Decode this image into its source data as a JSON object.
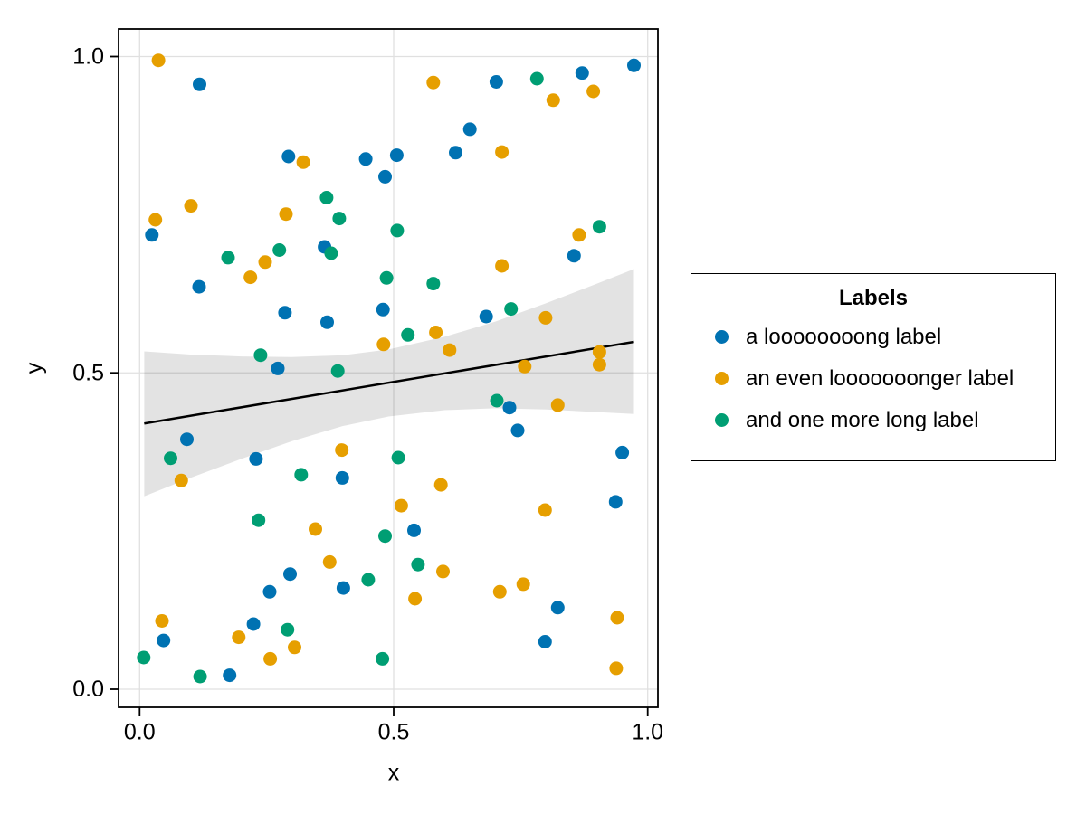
{
  "chart_data": {
    "type": "scatter",
    "title": "",
    "xlabel": "x",
    "ylabel": "y",
    "xlim": [
      -0.041,
      1.02
    ],
    "ylim": [
      -0.029,
      1.044
    ],
    "grid": true,
    "grid_color": "#e0e0e0",
    "x_ticks": {
      "values": [
        0.0,
        0.5,
        1.0
      ],
      "labels": [
        "0.0",
        "0.5",
        "1.0"
      ]
    },
    "y_ticks": {
      "values": [
        0.0,
        0.5,
        1.0
      ],
      "labels": [
        "0.0",
        "0.5",
        "1.0"
      ]
    },
    "legend": {
      "title": "Labels",
      "position": "right-outside"
    },
    "series": [
      {
        "name": "a loooooooong label",
        "color": "#0072B2",
        "points": [
          [
            0.118,
            0.956
          ],
          [
            0.973,
            0.986
          ],
          [
            0.871,
            0.974
          ],
          [
            0.702,
            0.96
          ],
          [
            0.65,
            0.885
          ],
          [
            0.622,
            0.848
          ],
          [
            0.506,
            0.844
          ],
          [
            0.445,
            0.838
          ],
          [
            0.483,
            0.81
          ],
          [
            0.293,
            0.842
          ],
          [
            0.024,
            0.718
          ],
          [
            0.855,
            0.685
          ],
          [
            0.364,
            0.699
          ],
          [
            0.117,
            0.636
          ],
          [
            0.286,
            0.595
          ],
          [
            0.479,
            0.6
          ],
          [
            0.369,
            0.58
          ],
          [
            0.682,
            0.589
          ],
          [
            0.272,
            0.507
          ],
          [
            0.728,
            0.445
          ],
          [
            0.744,
            0.409
          ],
          [
            0.95,
            0.374
          ],
          [
            0.093,
            0.395
          ],
          [
            0.229,
            0.364
          ],
          [
            0.399,
            0.334
          ],
          [
            0.937,
            0.296
          ],
          [
            0.54,
            0.251
          ],
          [
            0.296,
            0.182
          ],
          [
            0.256,
            0.154
          ],
          [
            0.401,
            0.16
          ],
          [
            0.823,
            0.129
          ],
          [
            0.798,
            0.075
          ],
          [
            0.047,
            0.077
          ],
          [
            0.224,
            0.103
          ],
          [
            0.177,
            0.022
          ]
        ]
      },
      {
        "name": "an even looooooonger label",
        "color": "#E69F00",
        "points": [
          [
            0.037,
            0.994
          ],
          [
            0.578,
            0.959
          ],
          [
            0.893,
            0.945
          ],
          [
            0.814,
            0.931
          ],
          [
            0.713,
            0.849
          ],
          [
            0.322,
            0.833
          ],
          [
            0.101,
            0.764
          ],
          [
            0.031,
            0.742
          ],
          [
            0.288,
            0.751
          ],
          [
            0.865,
            0.718
          ],
          [
            0.713,
            0.669
          ],
          [
            0.247,
            0.675
          ],
          [
            0.218,
            0.651
          ],
          [
            0.48,
            0.545
          ],
          [
            0.583,
            0.564
          ],
          [
            0.61,
            0.536
          ],
          [
            0.799,
            0.587
          ],
          [
            0.905,
            0.533
          ],
          [
            0.905,
            0.513
          ],
          [
            0.758,
            0.51
          ],
          [
            0.823,
            0.449
          ],
          [
            0.398,
            0.378
          ],
          [
            0.082,
            0.33
          ],
          [
            0.593,
            0.323
          ],
          [
            0.515,
            0.29
          ],
          [
            0.798,
            0.283
          ],
          [
            0.346,
            0.253
          ],
          [
            0.374,
            0.201
          ],
          [
            0.597,
            0.186
          ],
          [
            0.755,
            0.166
          ],
          [
            0.709,
            0.154
          ],
          [
            0.542,
            0.143
          ],
          [
            0.044,
            0.108
          ],
          [
            0.195,
            0.082
          ],
          [
            0.305,
            0.066
          ],
          [
            0.257,
            0.048
          ],
          [
            0.94,
            0.113
          ],
          [
            0.938,
            0.033
          ]
        ]
      },
      {
        "name": "and one more long label",
        "color": "#009E73",
        "points": [
          [
            0.782,
            0.965
          ],
          [
            0.368,
            0.777
          ],
          [
            0.393,
            0.744
          ],
          [
            0.507,
            0.725
          ],
          [
            0.905,
            0.731
          ],
          [
            0.377,
            0.689
          ],
          [
            0.275,
            0.694
          ],
          [
            0.174,
            0.682
          ],
          [
            0.486,
            0.65
          ],
          [
            0.578,
            0.641
          ],
          [
            0.731,
            0.601
          ],
          [
            0.528,
            0.56
          ],
          [
            0.238,
            0.528
          ],
          [
            0.39,
            0.503
          ],
          [
            0.703,
            0.456
          ],
          [
            0.061,
            0.365
          ],
          [
            0.318,
            0.339
          ],
          [
            0.509,
            0.366
          ],
          [
            0.234,
            0.267
          ],
          [
            0.483,
            0.242
          ],
          [
            0.45,
            0.173
          ],
          [
            0.548,
            0.197
          ],
          [
            0.291,
            0.094
          ],
          [
            0.008,
            0.05
          ],
          [
            0.478,
            0.048
          ],
          [
            0.119,
            0.02
          ]
        ]
      }
    ],
    "regression_line": {
      "color": "#000000",
      "x": [
        0.009,
        0.973
      ],
      "y": [
        0.42,
        0.549
      ]
    },
    "confidence_band": {
      "color": "rgba(0,0,0,0.11)",
      "x": [
        0.009,
        0.1,
        0.2,
        0.3,
        0.4,
        0.49,
        0.6,
        0.7,
        0.8,
        0.9,
        0.973
      ],
      "upper": [
        0.534,
        0.529,
        0.526,
        0.525,
        0.528,
        0.537,
        0.557,
        0.581,
        0.61,
        0.641,
        0.664
      ],
      "lower": [
        0.305,
        0.334,
        0.364,
        0.392,
        0.416,
        0.431,
        0.441,
        0.444,
        0.442,
        0.438,
        0.435
      ]
    }
  }
}
